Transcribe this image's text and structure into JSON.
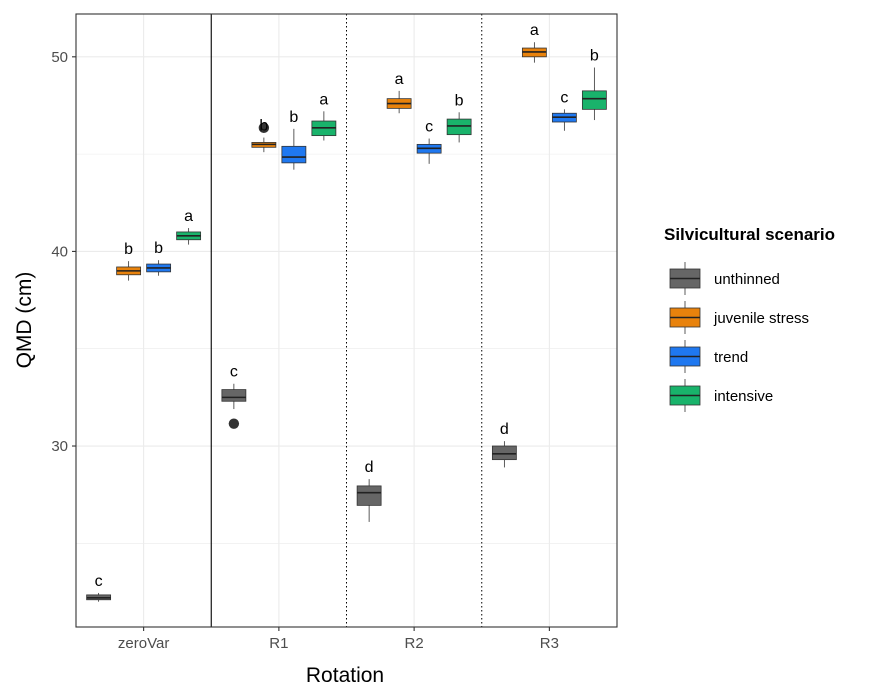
{
  "chart_data": {
    "type": "boxplot",
    "xlabel": "Rotation",
    "ylabel": "QMD (cm)",
    "ylim": [
      20.7,
      52.2
    ],
    "yticks": [
      30,
      40,
      50
    ],
    "grid": true,
    "categories": [
      "zeroVar",
      "R1",
      "R2",
      "R3"
    ],
    "legend": {
      "title": "Silvicultural scenario",
      "position": "right",
      "entries": [
        "unthinned",
        "juvenile stress",
        "trend",
        "intensive"
      ]
    },
    "colors": {
      "unthinned": "#666666",
      "juvenile stress": "#e8820c",
      "trend": "#1f78f0",
      "intensive": "#19b36b"
    },
    "series": [
      {
        "name": "unthinned",
        "boxes": [
          {
            "category": "zeroVar",
            "min": 22.0,
            "q1": 22.1,
            "median": 22.2,
            "q3": 22.35,
            "max": 22.45,
            "outliers": [],
            "letter": "c"
          },
          {
            "category": "R1",
            "min": 31.9,
            "q1": 32.3,
            "median": 32.5,
            "q3": 32.9,
            "max": 33.2,
            "outliers": [
              31.15
            ],
            "letter": "c"
          },
          {
            "category": "R2",
            "min": 26.1,
            "q1": 26.95,
            "median": 27.6,
            "q3": 27.95,
            "max": 28.3,
            "outliers": [],
            "letter": "d"
          },
          {
            "category": "R3",
            "min": 28.9,
            "q1": 29.3,
            "median": 29.6,
            "q3": 30.0,
            "max": 30.25,
            "outliers": [],
            "letter": "d"
          }
        ]
      },
      {
        "name": "juvenile stress",
        "boxes": [
          {
            "category": "zeroVar",
            "min": 38.5,
            "q1": 38.8,
            "median": 39.0,
            "q3": 39.2,
            "max": 39.5,
            "outliers": [],
            "letter": "b"
          },
          {
            "category": "R1",
            "min": 45.1,
            "q1": 45.35,
            "median": 45.5,
            "q3": 45.6,
            "max": 45.85,
            "outliers": [
              46.35
            ],
            "letter": "b"
          },
          {
            "category": "R2",
            "min": 47.1,
            "q1": 47.35,
            "median": 47.6,
            "q3": 47.85,
            "max": 48.25,
            "outliers": [],
            "letter": "a"
          },
          {
            "category": "R3",
            "min": 49.7,
            "q1": 50.0,
            "median": 50.25,
            "q3": 50.45,
            "max": 50.75,
            "outliers": [],
            "letter": "a"
          }
        ]
      },
      {
        "name": "trend",
        "boxes": [
          {
            "category": "zeroVar",
            "min": 38.75,
            "q1": 38.95,
            "median": 39.15,
            "q3": 39.35,
            "max": 39.55,
            "outliers": [],
            "letter": "b"
          },
          {
            "category": "R1",
            "min": 44.2,
            "q1": 44.55,
            "median": 44.85,
            "q3": 45.4,
            "max": 46.3,
            "outliers": [],
            "letter": "b"
          },
          {
            "category": "R2",
            "min": 44.5,
            "q1": 45.05,
            "median": 45.3,
            "q3": 45.5,
            "max": 45.8,
            "outliers": [],
            "letter": "c"
          },
          {
            "category": "R3",
            "min": 46.2,
            "q1": 46.65,
            "median": 46.9,
            "q3": 47.1,
            "max": 47.3,
            "outliers": [],
            "letter": "c"
          }
        ]
      },
      {
        "name": "intensive",
        "boxes": [
          {
            "category": "zeroVar",
            "min": 40.35,
            "q1": 40.6,
            "median": 40.8,
            "q3": 41.0,
            "max": 41.2,
            "outliers": [],
            "letter": "a"
          },
          {
            "category": "R1",
            "min": 45.7,
            "q1": 45.95,
            "median": 46.35,
            "q3": 46.7,
            "max": 47.2,
            "outliers": [],
            "letter": "a"
          },
          {
            "category": "R2",
            "min": 45.6,
            "q1": 46.0,
            "median": 46.45,
            "q3": 46.8,
            "max": 47.15,
            "outliers": [],
            "letter": "b"
          },
          {
            "category": "R3",
            "min": 46.75,
            "q1": 47.3,
            "median": 47.85,
            "q3": 48.25,
            "max": 49.45,
            "outliers": [],
            "letter": "b"
          }
        ]
      }
    ],
    "separators": [
      {
        "after": "zeroVar",
        "style": "solid"
      },
      {
        "after": "R1",
        "style": "dotted"
      },
      {
        "after": "R2",
        "style": "dotted"
      }
    ]
  }
}
